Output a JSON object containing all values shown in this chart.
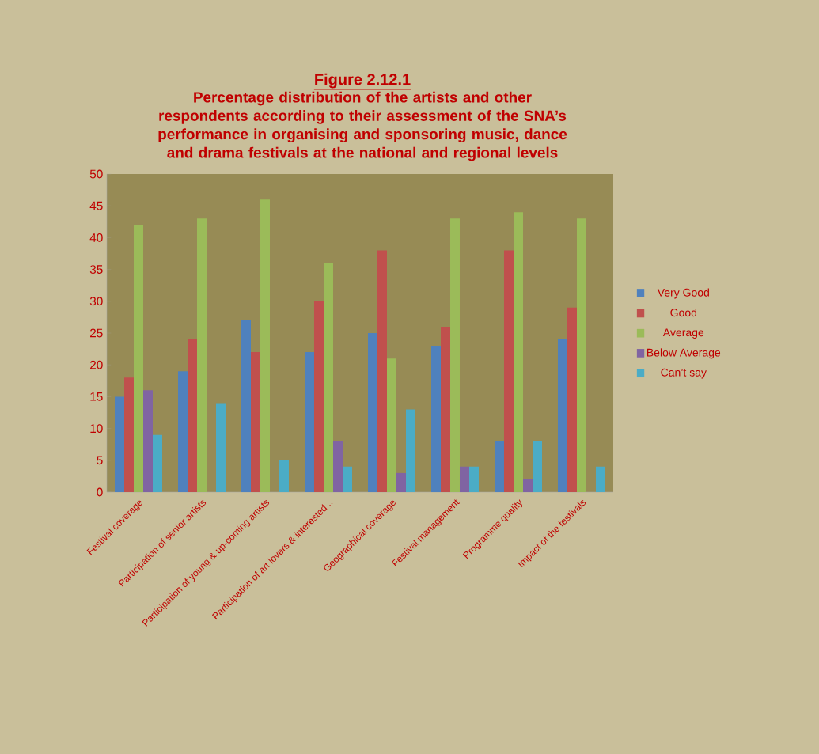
{
  "chart_data": {
    "type": "bar",
    "title": "Figure 2.12.1",
    "subtitle": "Percentage distribution of the artists and other respondents according to their assessment of the SNA’s performance in organising and sponsoring music, dance and drama festivals at the national and regional levels",
    "categories": [
      "Festival coverage",
      "Participation of  senior artists",
      "Participation of  young & up-coming artists",
      "Participation of art lovers & interested ..",
      "Geographical coverage",
      "Festival management",
      "Programme quality",
      "Impact of the festivals"
    ],
    "series": [
      {
        "name": "Very Good",
        "color": "#4f81bd",
        "values": [
          15,
          19,
          27,
          22,
          25,
          23,
          8,
          24
        ]
      },
      {
        "name": "Good",
        "color": "#c0504d",
        "values": [
          18,
          24,
          22,
          30,
          38,
          26,
          38,
          29
        ]
      },
      {
        "name": "Average",
        "color": "#9bbb59",
        "values": [
          42,
          43,
          46,
          36,
          21,
          43,
          44,
          43
        ]
      },
      {
        "name": "Below Average",
        "color": "#8064a2",
        "values": [
          16,
          0,
          0,
          8,
          3,
          4,
          2,
          0
        ]
      },
      {
        "name": "Can’t say",
        "color": "#4bacc6",
        "values": [
          9,
          14,
          5,
          4,
          13,
          4,
          8,
          4
        ]
      }
    ],
    "ylim": [
      0,
      50
    ],
    "yticks": [
      0,
      5,
      10,
      15,
      20,
      25,
      30,
      35,
      40,
      45,
      50
    ],
    "grid": false,
    "legend": "right"
  }
}
